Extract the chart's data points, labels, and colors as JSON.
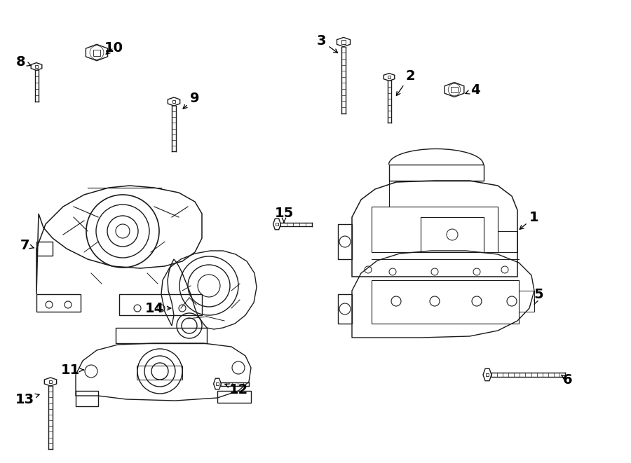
{
  "bg_color": "#ffffff",
  "line_color": "#1a1a1a",
  "line_width": 1.0,
  "fig_width": 9.0,
  "fig_height": 6.61,
  "dpi": 100
}
